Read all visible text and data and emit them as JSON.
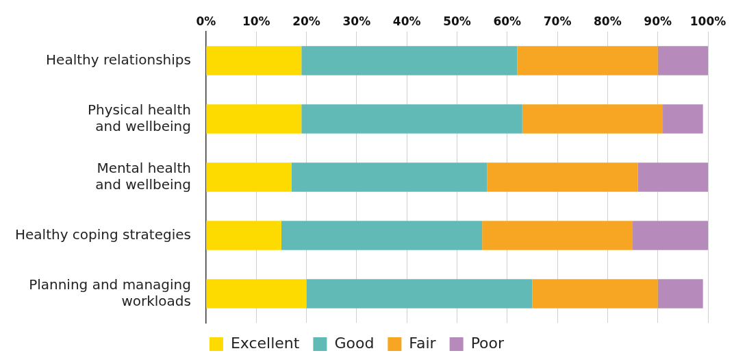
{
  "chart_data": {
    "type": "bar",
    "orientation": "horizontal",
    "stacked": true,
    "categories": [
      "Healthy relationships",
      "Physical health\nand wellbeing",
      "Mental health\nand wellbeing",
      "Healthy coping strategies",
      "Planning and managing\nworkloads"
    ],
    "series": [
      {
        "name": "Excellent",
        "color": "#fddb00",
        "values": [
          19,
          19,
          17,
          15,
          20
        ]
      },
      {
        "name": "Good",
        "color": "#62bab7",
        "values": [
          43,
          44,
          39,
          40,
          45
        ]
      },
      {
        "name": "Fair",
        "color": "#f6a623",
        "values": [
          28,
          28,
          30,
          30,
          25
        ]
      },
      {
        "name": "Poor",
        "color": "#b68bbb",
        "values": [
          10,
          8,
          14,
          15,
          9
        ]
      }
    ],
    "xlim": [
      0,
      100
    ],
    "xticks": [
      {
        "value": 0,
        "label": "0%"
      },
      {
        "value": 10,
        "label": "10%"
      },
      {
        "value": 20,
        "label": "20%"
      },
      {
        "value": 30,
        "label": "30%"
      },
      {
        "value": 40,
        "label": "40%"
      },
      {
        "value": 50,
        "label": "50%"
      },
      {
        "value": 60,
        "label": "60%"
      },
      {
        "value": 70,
        "label": "70%"
      },
      {
        "value": 80,
        "label": "80%"
      },
      {
        "value": 90,
        "label": "90%"
      },
      {
        "value": 100,
        "label": "100%"
      }
    ],
    "grid": "x",
    "legend": "bottom"
  }
}
